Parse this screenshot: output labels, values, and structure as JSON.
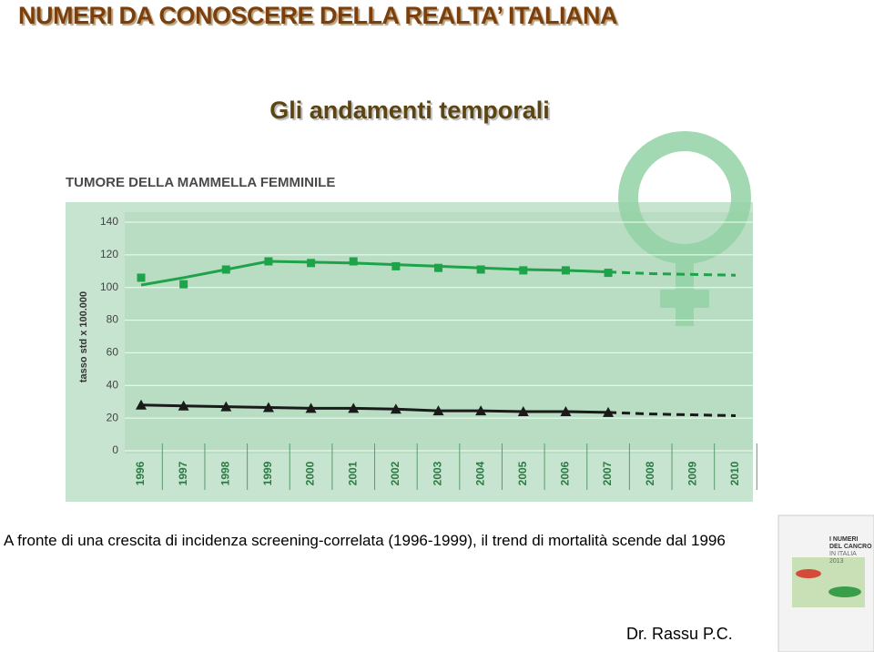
{
  "header": {
    "title": "NUMERI DA CONOSCERE DELLA REALTA’ ITALIANA",
    "subtitle": "Gli andamenti temporali"
  },
  "chart_data": {
    "type": "line",
    "title": "TUMORE DELLA MAMMELLA FEMMINILE",
    "y_label": "tasso std x 100.000",
    "categories": [
      "1996",
      "1997",
      "1998",
      "1999",
      "2000",
      "2001",
      "2002",
      "2003",
      "2004",
      "2005",
      "2006",
      "2007",
      "2008",
      "2009",
      "2010"
    ],
    "ylim": [
      0,
      140
    ],
    "yticks": [
      0,
      20,
      40,
      60,
      80,
      100,
      120,
      140
    ],
    "grid": true,
    "series": [
      {
        "color": "#1fa34a",
        "marker": "square",
        "line": "none",
        "values": [
          106,
          102,
          111,
          116,
          115,
          116,
          113,
          112,
          111,
          110.5,
          110.5,
          109,
          null,
          null,
          null
        ]
      },
      {
        "color": "#1fa34a",
        "marker": "none",
        "line": "solid",
        "values": [
          101.5,
          106,
          111,
          116,
          115.5,
          115,
          114,
          113,
          112,
          111,
          110.5,
          109.5,
          null,
          null,
          null
        ]
      },
      {
        "color": "#1fa34a",
        "marker": "none",
        "line": "dashed",
        "values": [
          null,
          null,
          null,
          null,
          null,
          null,
          null,
          null,
          null,
          null,
          null,
          109.5,
          108.5,
          108,
          107.5
        ]
      },
      {
        "color": "#1a1a1a",
        "marker": "triangle",
        "line": "solid",
        "values": [
          28,
          27.5,
          27,
          26.5,
          26,
          26,
          25.5,
          24.5,
          24.5,
          24,
          24,
          23.5,
          null,
          null,
          null
        ]
      },
      {
        "color": "#1a1a1a",
        "marker": "none",
        "line": "dashed",
        "values": [
          null,
          null,
          null,
          null,
          null,
          null,
          null,
          null,
          null,
          null,
          null,
          23.5,
          22.5,
          22,
          21.5
        ]
      }
    ]
  },
  "caption": "A fronte di una crescita di incidenza screening-correlata (1996-1999), il trend di mortalità scende dal 1996",
  "cover": {
    "line1": "I NUMERI",
    "line2": "DEL CANCRO",
    "line3": "IN ITALIA",
    "line4": "2013"
  },
  "author": "Dr. Rassu P.C."
}
